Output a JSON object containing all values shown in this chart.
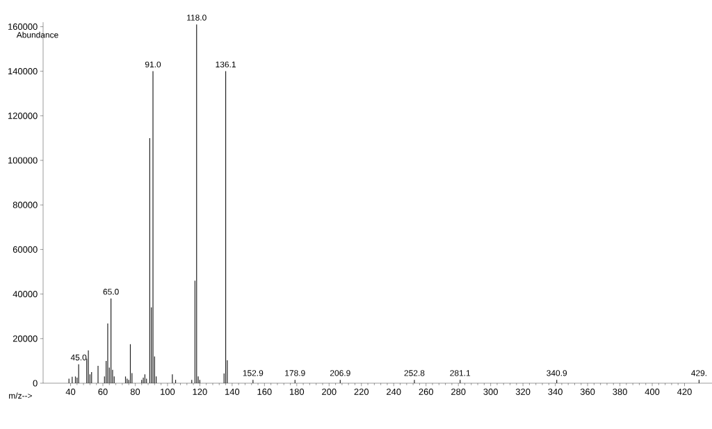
{
  "chart_data": {
    "type": "bar",
    "xlabel": "m/z-->",
    "ylabel": "Abundance",
    "color": "#222222",
    "x": [
      39,
      41,
      43,
      44,
      45,
      50,
      51,
      52,
      53,
      57,
      61,
      62,
      63,
      64,
      65,
      66,
      67,
      74,
      75,
      76,
      77,
      78,
      84,
      85,
      86,
      87,
      89,
      90,
      91,
      92,
      93,
      103,
      105,
      115,
      117,
      118,
      119,
      120,
      135,
      136,
      137,
      152.9,
      178.9,
      206.9,
      252.8,
      281.1,
      340.9,
      429
    ],
    "values": [
      2000,
      2900,
      3000,
      2500,
      8500,
      11000,
      14700,
      4000,
      5000,
      7800,
      3000,
      10000,
      26800,
      7000,
      38000,
      6000,
      3000,
      3000,
      2000,
      1500,
      17500,
      4500,
      1500,
      2500,
      4000,
      2000,
      110000,
      34000,
      140000,
      12000,
      3000,
      4000,
      1500,
      1500,
      46000,
      161000,
      3000,
      1500,
      4400,
      140000,
      10300,
      1500,
      1500,
      1500,
      1500,
      1500,
      1500,
      1500
    ],
    "xlim": [
      23,
      437
    ],
    "ylim": [
      0,
      162000
    ],
    "xticks": [
      40,
      60,
      80,
      100,
      120,
      140,
      160,
      180,
      200,
      220,
      240,
      260,
      280,
      300,
      320,
      340,
      360,
      380,
      400,
      420
    ],
    "yticks": [
      0,
      20000,
      40000,
      60000,
      80000,
      100000,
      120000,
      140000,
      160000
    ],
    "annotations": [
      {
        "text": "45.0",
        "x": 45,
        "y": 8500
      },
      {
        "text": "65.0",
        "x": 65,
        "y": 38000
      },
      {
        "text": "91.0",
        "x": 91,
        "y": 140000
      },
      {
        "text": "118.0",
        "x": 118,
        "y": 161000
      },
      {
        "text": "136.1",
        "x": 136,
        "y": 140000
      },
      {
        "text": "152.9",
        "x": 152.9,
        "y": 1500
      },
      {
        "text": "178.9",
        "x": 178.9,
        "y": 1500
      },
      {
        "text": "206.9",
        "x": 206.9,
        "y": 1500
      },
      {
        "text": "252.8",
        "x": 252.8,
        "y": 1500
      },
      {
        "text": "281.1",
        "x": 281.1,
        "y": 1500
      },
      {
        "text": "340.9",
        "x": 340.9,
        "y": 1500
      },
      {
        "text": "429.",
        "x": 429,
        "y": 1500
      }
    ]
  }
}
